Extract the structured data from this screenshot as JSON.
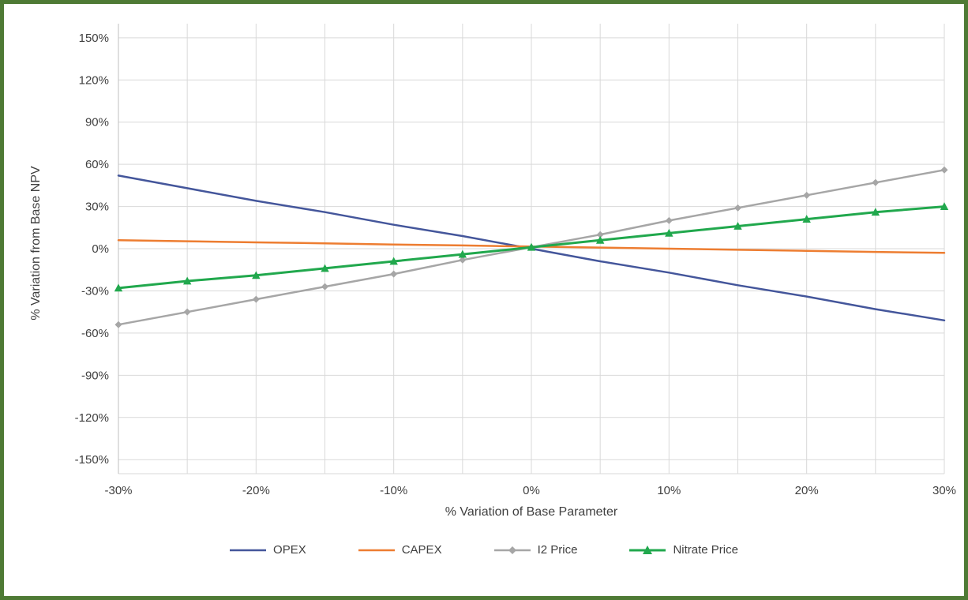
{
  "frame": {
    "border_color": "#4E7A35",
    "background": "#FFFFFF"
  },
  "chart_data": {
    "type": "line",
    "title": "",
    "xlabel": "% Variation of Base Parameter",
    "ylabel": "% Variation from Base NPV",
    "xlim": [
      -30,
      30
    ],
    "ylim": [
      -150,
      150
    ],
    "grid": {
      "on": true,
      "x_step": 5,
      "y_step": 30,
      "color": "#D9D9D9"
    },
    "legend_position": "bottom",
    "x_tick_values": [
      -30,
      -20,
      -10,
      0,
      10,
      20,
      30
    ],
    "x_ticks": [
      "-30%",
      "-20%",
      "-10%",
      "0%",
      "10%",
      "20%",
      "30%"
    ],
    "y_tick_values": [
      150,
      120,
      90,
      60,
      30,
      0,
      -30,
      -60,
      -90,
      -120,
      -150
    ],
    "y_ticks": [
      "150%",
      "120%",
      "90%",
      "60%",
      "30%",
      "0%",
      "-30%",
      "-60%",
      "-90%",
      "-120%",
      "-150%"
    ],
    "x": [
      -30,
      -25,
      -20,
      -15,
      -10,
      -5,
      0,
      5,
      10,
      15,
      20,
      25,
      30
    ],
    "series": [
      {
        "name": "OPEX",
        "color": "#44569B",
        "marker": "none",
        "width": 2.5,
        "values": [
          52,
          43,
          34,
          26,
          17,
          9,
          0,
          -9,
          -17,
          -26,
          -34,
          -43,
          -51
        ]
      },
      {
        "name": "CAPEX",
        "color": "#ED7D31",
        "marker": "none",
        "width": 2.5,
        "values": [
          6,
          5.3,
          4.5,
          3.8,
          3,
          2.3,
          1.5,
          0.8,
          0,
          -0.8,
          -1.5,
          -2.3,
          -3
        ]
      },
      {
        "name": "I2 Price",
        "color": "#A6A6A6",
        "marker": "diamond",
        "width": 2.5,
        "values": [
          -54,
          -45,
          -36,
          -27,
          -18,
          -8,
          1,
          10,
          20,
          29,
          38,
          47,
          56
        ]
      },
      {
        "name": "Nitrate Price",
        "color": "#21A84D",
        "marker": "triangle",
        "width": 3,
        "values": [
          -28,
          -23,
          -19,
          -14,
          -9,
          -4,
          1,
          6,
          11,
          16,
          21,
          26,
          30
        ]
      }
    ]
  }
}
